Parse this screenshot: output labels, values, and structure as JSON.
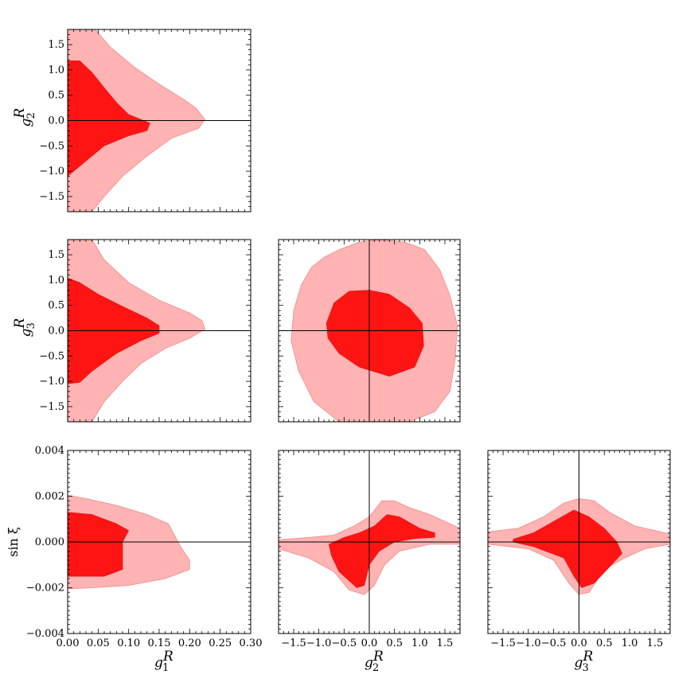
{
  "colors": {
    "outer_region": "#ffb3b3",
    "inner_region": "#ff1414",
    "axes": "#000000"
  },
  "chart_data": [
    {
      "type": "contour",
      "id": "g1-g2",
      "xlim": [
        0.0,
        0.3
      ],
      "ylim": [
        -1.8,
        1.8
      ],
      "x_ticks": [],
      "y_ticks": [
        "1.5",
        "1.0",
        "0.5",
        "0.0",
        "−0.5",
        "−1.0",
        "−1.5"
      ],
      "y_tick_values": [
        1.5,
        1.0,
        0.5,
        0.0,
        -0.5,
        -1.0,
        -1.5
      ],
      "xlabel_base": "",
      "xlabel_sup": "",
      "ylabel_base": "g",
      "ylabel_sub": "2",
      "ylabel_sup": "R",
      "zero_lines": {
        "horizontal": true,
        "vertical": false
      },
      "regions": [
        {
          "level": "outer",
          "points": [
            [
              0,
              1.8
            ],
            [
              0.045,
              1.8
            ],
            [
              0.07,
              1.45
            ],
            [
              0.11,
              1.05
            ],
            [
              0.15,
              0.72
            ],
            [
              0.19,
              0.42
            ],
            [
              0.21,
              0.25
            ],
            [
              0.225,
              0.02
            ],
            [
              0.215,
              -0.15
            ],
            [
              0.17,
              -0.35
            ],
            [
              0.13,
              -0.7
            ],
            [
              0.09,
              -1.1
            ],
            [
              0.06,
              -1.5
            ],
            [
              0.04,
              -1.8
            ],
            [
              0,
              -1.8
            ]
          ]
        },
        {
          "level": "inner",
          "points": [
            [
              0,
              1.18
            ],
            [
              0.02,
              1.18
            ],
            [
              0.04,
              0.95
            ],
            [
              0.06,
              0.65
            ],
            [
              0.08,
              0.36
            ],
            [
              0.1,
              0.12
            ],
            [
              0.135,
              -0.05
            ],
            [
              0.13,
              -0.2
            ],
            [
              0.1,
              -0.3
            ],
            [
              0.06,
              -0.5
            ],
            [
              0.03,
              -0.8
            ],
            [
              0,
              -1.1
            ]
          ]
        }
      ]
    },
    {
      "type": "contour",
      "id": "g1-g3",
      "xlim": [
        0.0,
        0.3
      ],
      "ylim": [
        -1.8,
        1.8
      ],
      "x_ticks": [],
      "y_ticks": [
        "1.5",
        "1.0",
        "0.5",
        "0.0",
        "−0.5",
        "−1.0",
        "−1.5"
      ],
      "y_tick_values": [
        1.5,
        1.0,
        0.5,
        0.0,
        -0.5,
        -1.0,
        -1.5
      ],
      "xlabel_base": "",
      "xlabel_sup": "",
      "ylabel_base": "g",
      "ylabel_sub": "3",
      "ylabel_sup": "R",
      "zero_lines": {
        "horizontal": true,
        "vertical": false
      },
      "regions": [
        {
          "level": "outer",
          "points": [
            [
              0,
              1.8
            ],
            [
              0.04,
              1.8
            ],
            [
              0.06,
              1.4
            ],
            [
              0.1,
              0.95
            ],
            [
              0.15,
              0.6
            ],
            [
              0.2,
              0.35
            ],
            [
              0.22,
              0.2
            ],
            [
              0.225,
              0.03
            ],
            [
              0.2,
              -0.15
            ],
            [
              0.16,
              -0.35
            ],
            [
              0.12,
              -0.65
            ],
            [
              0.09,
              -1.0
            ],
            [
              0.06,
              -1.4
            ],
            [
              0.04,
              -1.8
            ],
            [
              0,
              -1.8
            ]
          ]
        },
        {
          "level": "inner",
          "points": [
            [
              0,
              1.04
            ],
            [
              0.02,
              0.95
            ],
            [
              0.05,
              0.72
            ],
            [
              0.09,
              0.48
            ],
            [
              0.13,
              0.25
            ],
            [
              0.15,
              0.1
            ],
            [
              0.15,
              -0.05
            ],
            [
              0.12,
              -0.2
            ],
            [
              0.08,
              -0.45
            ],
            [
              0.04,
              -0.8
            ],
            [
              0.02,
              -1.02
            ],
            [
              0,
              -1.05
            ]
          ]
        }
      ]
    },
    {
      "type": "contour",
      "id": "g2-g3",
      "xlim": [
        -1.8,
        1.8
      ],
      "ylim": [
        -1.8,
        1.8
      ],
      "x_ticks": [],
      "y_ticks": [],
      "xlabel_base": "",
      "xlabel_sup": "",
      "ylabel_base": "",
      "ylabel_sub": "",
      "ylabel_sup": "",
      "zero_lines": {
        "horizontal": true,
        "vertical": true
      },
      "regions": [
        {
          "level": "outer",
          "points": [
            [
              -0.9,
              1.45
            ],
            [
              -0.6,
              1.6
            ],
            [
              -0.2,
              1.75
            ],
            [
              0.2,
              1.8
            ],
            [
              0.7,
              1.75
            ],
            [
              1.1,
              1.6
            ],
            [
              1.4,
              1.2
            ],
            [
              1.6,
              0.7
            ],
            [
              1.75,
              0.1
            ],
            [
              1.7,
              -0.6
            ],
            [
              1.6,
              -1.2
            ],
            [
              1.3,
              -1.6
            ],
            [
              0.8,
              -1.8
            ],
            [
              -0.6,
              -1.8
            ],
            [
              -1.1,
              -1.4
            ],
            [
              -1.4,
              -0.8
            ],
            [
              -1.55,
              -0.2
            ],
            [
              -1.5,
              0.4
            ],
            [
              -1.35,
              0.9
            ],
            [
              -1.15,
              1.25
            ]
          ]
        },
        {
          "level": "inner",
          "points": [
            [
              -0.85,
              0.15
            ],
            [
              -0.7,
              0.55
            ],
            [
              -0.4,
              0.78
            ],
            [
              0.0,
              0.8
            ],
            [
              0.4,
              0.72
            ],
            [
              0.8,
              0.45
            ],
            [
              1.05,
              0.15
            ],
            [
              1.08,
              -0.3
            ],
            [
              0.9,
              -0.72
            ],
            [
              0.4,
              -0.9
            ],
            [
              -0.2,
              -0.72
            ],
            [
              -0.6,
              -0.45
            ],
            [
              -0.82,
              -0.15
            ]
          ]
        }
      ]
    },
    {
      "type": "contour",
      "id": "g1-sinxi",
      "xlim": [
        0.0,
        0.3
      ],
      "ylim": [
        -0.004,
        0.004
      ],
      "x_ticks": [
        "0.00",
        "0.05",
        "0.10",
        "0.15",
        "0.20",
        "0.25",
        "0.30"
      ],
      "x_tick_values": [
        0.0,
        0.05,
        0.1,
        0.15,
        0.2,
        0.25,
        0.3
      ],
      "y_ticks": [
        "0.004",
        "0.002",
        "0.000",
        "−0.002",
        "−0.004"
      ],
      "y_tick_values": [
        0.004,
        0.002,
        0.0,
        -0.002,
        -0.004
      ],
      "xlabel_base": "g",
      "xlabel_sub": "1",
      "xlabel_sup": "R",
      "ylabel_upright": "sin ξ",
      "zero_lines": {
        "horizontal": true,
        "vertical": false
      },
      "regions": [
        {
          "level": "outer",
          "points": [
            [
              0,
              0.00205
            ],
            [
              0.03,
              0.0019
            ],
            [
              0.08,
              0.0016
            ],
            [
              0.13,
              0.0012
            ],
            [
              0.165,
              0.0008
            ],
            [
              0.175,
              0.0003
            ],
            [
              0.185,
              -0.0002
            ],
            [
              0.2,
              -0.0008
            ],
            [
              0.2,
              -0.0012
            ],
            [
              0.16,
              -0.0016
            ],
            [
              0.1,
              -0.0019
            ],
            [
              0.04,
              -0.002
            ],
            [
              0,
              -0.00205
            ]
          ]
        },
        {
          "level": "inner",
          "points": [
            [
              0,
              0.0013
            ],
            [
              0.04,
              0.0012
            ],
            [
              0.08,
              0.0008
            ],
            [
              0.1,
              0.0005
            ],
            [
              0.09,
              0.0
            ],
            [
              0.09,
              -0.0012
            ],
            [
              0.06,
              -0.0015
            ],
            [
              0.02,
              -0.0015
            ],
            [
              0,
              -0.0015
            ]
          ]
        }
      ]
    },
    {
      "type": "contour",
      "id": "g2-sinxi",
      "xlim": [
        -1.8,
        1.8
      ],
      "ylim": [
        -0.004,
        0.004
      ],
      "x_ticks": [
        "−1.5",
        "−1.0",
        "−0.5",
        "0.0",
        "0.5",
        "1.0",
        "1.5"
      ],
      "x_tick_values": [
        -1.5,
        -1.0,
        -0.5,
        0.0,
        0.5,
        1.0,
        1.5
      ],
      "y_ticks": [],
      "xlabel_base": "g",
      "xlabel_sub": "2",
      "xlabel_sup": "R",
      "ylabel_base": "",
      "ylabel_sub": "",
      "ylabel_sup": "",
      "zero_lines": {
        "horizontal": true,
        "vertical": true
      },
      "regions": [
        {
          "level": "outer",
          "points": [
            [
              -1.8,
              0.0001
            ],
            [
              -1.2,
              0.0002
            ],
            [
              -0.7,
              0.0003
            ],
            [
              -0.3,
              0.0007
            ],
            [
              0.0,
              0.0011
            ],
            [
              0.25,
              0.0018
            ],
            [
              0.5,
              0.0018
            ],
            [
              0.8,
              0.0015
            ],
            [
              1.2,
              0.0012
            ],
            [
              1.8,
              0.0006
            ],
            [
              1.8,
              -0.0001
            ],
            [
              1.2,
              -0.0001
            ],
            [
              0.6,
              -0.0004
            ],
            [
              0.3,
              -0.001
            ],
            [
              0.1,
              -0.0019
            ],
            [
              -0.1,
              -0.0023
            ],
            [
              -0.4,
              -0.0021
            ],
            [
              -0.7,
              -0.0013
            ],
            [
              -1.2,
              -0.0007
            ],
            [
              -1.8,
              -0.0003
            ]
          ]
        },
        {
          "level": "inner",
          "points": [
            [
              -0.8,
              -0.0001
            ],
            [
              -0.5,
              0.0002
            ],
            [
              -0.2,
              0.0004
            ],
            [
              0.1,
              0.0007
            ],
            [
              0.35,
              0.0012
            ],
            [
              0.6,
              0.0011
            ],
            [
              1.0,
              0.0006
            ],
            [
              1.3,
              0.0004
            ],
            [
              1.3,
              0.0002
            ],
            [
              0.9,
              0.00015
            ],
            [
              0.5,
              0.0
            ],
            [
              0.2,
              -0.0004
            ],
            [
              0.0,
              -0.001
            ],
            [
              -0.1,
              -0.0019
            ],
            [
              -0.25,
              -0.002
            ],
            [
              -0.6,
              -0.0013
            ],
            [
              -0.75,
              -0.0006
            ]
          ]
        }
      ]
    },
    {
      "type": "contour",
      "id": "g3-sinxi",
      "xlim": [
        -1.8,
        1.8
      ],
      "ylim": [
        -0.004,
        0.004
      ],
      "x_ticks": [
        "−1.5",
        "−1.0",
        "−0.5",
        "0.0",
        "0.5",
        "1.0",
        "1.5"
      ],
      "x_tick_values": [
        -1.5,
        -1.0,
        -0.5,
        0.0,
        0.5,
        1.0,
        1.5
      ],
      "y_ticks": [],
      "xlabel_base": "g",
      "xlabel_sub": "3",
      "xlabel_sup": "R",
      "ylabel_base": "",
      "ylabel_sub": "",
      "ylabel_sup": "",
      "zero_lines": {
        "horizontal": true,
        "vertical": true
      },
      "regions": [
        {
          "level": "outer",
          "points": [
            [
              -1.8,
              0.00045
            ],
            [
              -1.2,
              0.0006
            ],
            [
              -0.7,
              0.0011
            ],
            [
              -0.3,
              0.0017
            ],
            [
              0.0,
              0.0019
            ],
            [
              0.3,
              0.0018
            ],
            [
              0.6,
              0.0013
            ],
            [
              1.1,
              0.0007
            ],
            [
              1.8,
              0.00035
            ],
            [
              1.8,
              -0.0001
            ],
            [
              1.3,
              -0.0003
            ],
            [
              0.9,
              -0.0007
            ],
            [
              0.5,
              -0.0012
            ],
            [
              0.2,
              -0.0022
            ],
            [
              0.0,
              -0.0023
            ],
            [
              -0.2,
              -0.0018
            ],
            [
              -0.5,
              -0.0008
            ],
            [
              -1.0,
              -0.0003
            ],
            [
              -1.8,
              -0.0001
            ]
          ]
        },
        {
          "level": "inner",
          "points": [
            [
              -1.3,
              0.00012
            ],
            [
              -0.9,
              0.0004
            ],
            [
              -0.5,
              0.0009
            ],
            [
              -0.1,
              0.0014
            ],
            [
              0.2,
              0.0011
            ],
            [
              0.5,
              0.0006
            ],
            [
              0.75,
              0.0
            ],
            [
              0.85,
              -0.0005
            ],
            [
              0.6,
              -0.0011
            ],
            [
              0.3,
              -0.0018
            ],
            [
              0.05,
              -0.002
            ],
            [
              -0.1,
              -0.0015
            ],
            [
              -0.3,
              -0.0007
            ],
            [
              -0.9,
              -0.0002
            ],
            [
              -1.3,
              0.0
            ]
          ]
        }
      ]
    }
  ]
}
